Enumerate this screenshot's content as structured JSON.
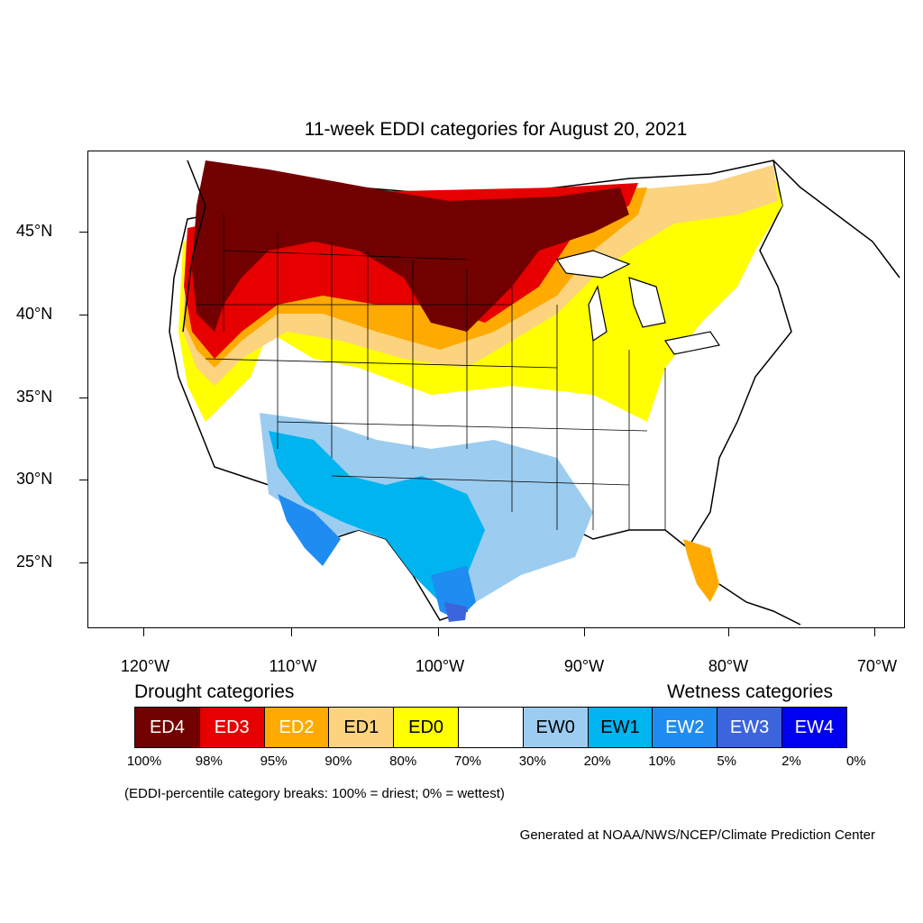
{
  "title": "11-week EDDI categories for August 20, 2021",
  "lat_labels": [
    "45°N",
    "40°N",
    "35°N",
    "30°N",
    "25°N"
  ],
  "lon_labels": [
    "120°W",
    "110°W",
    "100°W",
    "90°W",
    "80°W",
    "70°W"
  ],
  "drought_heading": "Drought categories",
  "wetness_heading": "Wetness categories",
  "legend": [
    {
      "label": "ED4",
      "color": "#730000",
      "text_color": "#ffffff"
    },
    {
      "label": "ED3",
      "color": "#e60000",
      "text_color": "#ffffff"
    },
    {
      "label": "ED2",
      "color": "#ffaa00",
      "text_color": "#ffffff"
    },
    {
      "label": "ED1",
      "color": "#fcd37f",
      "text_color": "#000000"
    },
    {
      "label": "ED0",
      "color": "#ffff00",
      "text_color": "#000000"
    },
    {
      "label": "",
      "color": "#ffffff",
      "text_color": "#000000"
    },
    {
      "label": "EW0",
      "color": "#9ccdf0",
      "text_color": "#000000"
    },
    {
      "label": "EW1",
      "color": "#00b4f0",
      "text_color": "#000000"
    },
    {
      "label": "EW2",
      "color": "#1e8cf0",
      "text_color": "#ffffff"
    },
    {
      "label": "EW3",
      "color": "#3c64dc",
      "text_color": "#ffffff"
    },
    {
      "label": "EW4",
      "color": "#0000f0",
      "text_color": "#ffffff"
    }
  ],
  "percentiles": [
    "100%",
    "98%",
    "95%",
    "90%",
    "80%",
    "70%",
    "30%",
    "20%",
    "10%",
    "5%",
    "2%",
    "0%"
  ],
  "note": "(EDDI-percentile category breaks: 100% = driest; 0% = wettest)",
  "credit": "Generated at NOAA/NWS/NCEP/Climate Prediction Center"
}
